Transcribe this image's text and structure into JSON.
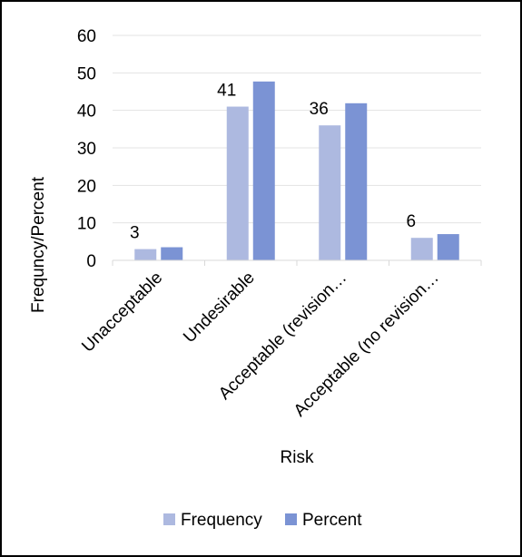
{
  "chart_data": {
    "type": "bar",
    "title": "",
    "xlabel": "Risk",
    "ylabel": "Frequncy/Percent",
    "ylim": [
      0,
      60
    ],
    "yticks": [
      0,
      10,
      20,
      30,
      40,
      50,
      60
    ],
    "grid": true,
    "legend_position": "bottom",
    "categories": [
      "Unacceptable",
      "Undesirable",
      "Acceptable (revision…",
      "Acceptable (no revision…"
    ],
    "series": [
      {
        "name": "Frequency",
        "color": "#adb9e0",
        "values": [
          3,
          41,
          36,
          6
        ],
        "data_labels": [
          "3",
          "41",
          "36",
          "6"
        ]
      },
      {
        "name": "Percent",
        "color": "#7b93d4",
        "values": [
          3.5,
          47.7,
          41.9,
          7.0
        ],
        "data_labels": []
      }
    ]
  }
}
